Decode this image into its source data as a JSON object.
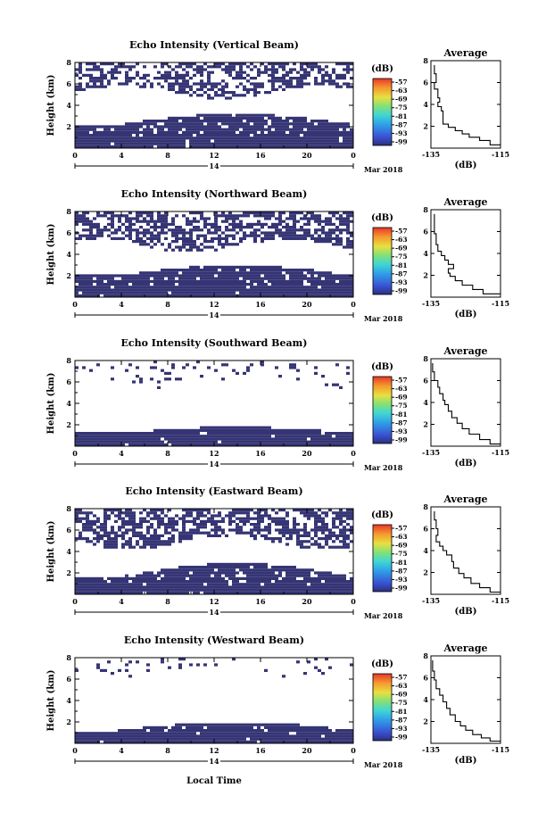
{
  "figure": {
    "xlabel": "Local Time",
    "date_label": "Mar 2018",
    "day_label": "14",
    "colorbar_unit": "(dB)",
    "average_title": "Average",
    "average_xlabel": "(dB)"
  },
  "chart_data": [
    {
      "type": "heatmap",
      "title": "Echo Intensity (Vertical Beam)",
      "ylabel": "Height (km)",
      "xlim": [
        0,
        24
      ],
      "ylim": [
        0,
        8
      ],
      "xticks": [
        "0",
        "4",
        "8",
        "12",
        "16",
        "20",
        "0"
      ],
      "yticks": [
        "2",
        "4",
        "6",
        "8"
      ],
      "colorbar": {
        "ticks": [
          "-57",
          "-63",
          "-69",
          "-75",
          "-81",
          "-87",
          "-93",
          "-99"
        ]
      },
      "upper_base_km": 5.2,
      "lower_top_km": [
        2.2,
        3.2
      ],
      "upper_density": 0.62,
      "lower_density": 0.9,
      "average": {
        "xlim": [
          -135,
          -115
        ],
        "xticks": [
          "-135",
          "-115"
        ],
        "yticks": [
          "2",
          "4",
          "6",
          "8"
        ],
        "x": [
          -134.0,
          -133.5,
          -134.0,
          -133.0,
          -132.5,
          -133.0,
          -132.0,
          -131.5,
          -131.5,
          -130.0,
          -128.0,
          -126.0,
          -124.0,
          -121.0,
          -118.0,
          -115.0
        ],
        "y": [
          7.6,
          6.8,
          6.0,
          5.4,
          4.6,
          4.2,
          3.8,
          3.4,
          2.6,
          2.2,
          1.9,
          1.6,
          1.3,
          1.0,
          0.7,
          0.3
        ]
      }
    },
    {
      "type": "heatmap",
      "title": "Echo Intensity (Northward Beam)",
      "ylabel": "Height (km)",
      "xlim": [
        0,
        24
      ],
      "ylim": [
        0,
        8
      ],
      "xticks": [
        "0",
        "4",
        "8",
        "12",
        "16",
        "20",
        "0"
      ],
      "yticks": [
        "2",
        "4",
        "6",
        "8"
      ],
      "colorbar": {
        "ticks": [
          "-57",
          "-63",
          "-69",
          "-75",
          "-81",
          "-87",
          "-93",
          "-99"
        ]
      },
      "upper_base_km": 4.8,
      "lower_top_km": [
        2.0,
        3.0
      ],
      "upper_density": 0.72,
      "lower_density": 0.92,
      "average": {
        "xlim": [
          -135,
          -115
        ],
        "xticks": [
          "-135",
          "-115"
        ],
        "yticks": [
          "2",
          "4",
          "6",
          "8"
        ],
        "x": [
          -134.0,
          -134.0,
          -133.5,
          -133.0,
          -132.0,
          -131.0,
          -130.0,
          -128.5,
          -130.0,
          -129.5,
          -128.0,
          -126.0,
          -123.0,
          -120.0,
          -115.0
        ],
        "y": [
          7.6,
          6.6,
          5.8,
          4.8,
          4.2,
          3.8,
          3.4,
          3.0,
          2.6,
          2.2,
          1.9,
          1.5,
          1.1,
          0.7,
          0.3
        ]
      }
    },
    {
      "type": "heatmap",
      "title": "Echo Intensity (Southward Beam)",
      "ylabel": "Height (km)",
      "xlim": [
        0,
        24
      ],
      "ylim": [
        0,
        8
      ],
      "xticks": [
        "0",
        "4",
        "8",
        "12",
        "16",
        "20",
        "0"
      ],
      "yticks": [
        "2",
        "4",
        "6",
        "8"
      ],
      "colorbar": {
        "ticks": [
          "-57",
          "-63",
          "-69",
          "-75",
          "-81",
          "-87",
          "-93",
          "-99"
        ]
      },
      "upper_base_km": 6.0,
      "lower_top_km": [
        1.2,
        1.8
      ],
      "upper_density": 0.12,
      "lower_density": 0.95,
      "average": {
        "xlim": [
          -135,
          -115
        ],
        "xticks": [
          "-135",
          "-115"
        ],
        "yticks": [
          "2",
          "4",
          "6",
          "8"
        ],
        "x": [
          -134.5,
          -134.0,
          -133.0,
          -132.5,
          -131.5,
          -131.0,
          -130.0,
          -129.0,
          -127.5,
          -126.0,
          -124.0,
          -121.0,
          -118.0,
          -115.0
        ],
        "y": [
          7.6,
          6.8,
          6.0,
          5.4,
          4.8,
          4.2,
          3.8,
          3.2,
          2.6,
          2.1,
          1.6,
          1.1,
          0.6,
          0.2
        ]
      }
    },
    {
      "type": "heatmap",
      "title": "Echo Intensity (Eastward Beam)",
      "ylabel": "Height (km)",
      "xlim": [
        0,
        24
      ],
      "ylim": [
        0,
        8
      ],
      "xticks": [
        "0",
        "4",
        "8",
        "12",
        "16",
        "20",
        "0"
      ],
      "yticks": [
        "2",
        "4",
        "6",
        "8"
      ],
      "colorbar": {
        "ticks": [
          "-57",
          "-63",
          "-69",
          "-75",
          "-81",
          "-87",
          "-93",
          "-99"
        ]
      },
      "upper_base_km": 4.8,
      "lower_top_km": [
        1.6,
        2.9
      ],
      "upper_density": 0.7,
      "lower_density": 0.9,
      "average": {
        "xlim": [
          -135,
          -115
        ],
        "xticks": [
          "-135",
          "-115"
        ],
        "yticks": [
          "2",
          "4",
          "6",
          "8"
        ],
        "x": [
          -134.0,
          -133.5,
          -133.0,
          -133.5,
          -132.5,
          -131.5,
          -130.5,
          -129.0,
          -128.5,
          -127.0,
          -125.5,
          -123.5,
          -121.0,
          -118.0,
          -115.0
        ],
        "y": [
          7.6,
          6.8,
          6.0,
          5.4,
          4.8,
          4.4,
          4.0,
          3.6,
          3.0,
          2.4,
          1.9,
          1.5,
          1.0,
          0.6,
          0.2
        ]
      }
    },
    {
      "type": "heatmap",
      "title": "Echo Intensity (Westward Beam)",
      "ylabel": "Height (km)",
      "xlim": [
        0,
        24
      ],
      "ylim": [
        0,
        8
      ],
      "xticks": [
        "0",
        "4",
        "8",
        "12",
        "16",
        "20",
        "0"
      ],
      "yticks": [
        "2",
        "4",
        "6",
        "8"
      ],
      "colorbar": {
        "ticks": [
          "-57",
          "-63",
          "-69",
          "-75",
          "-81",
          "-87",
          "-93",
          "-99"
        ]
      },
      "upper_base_km": 6.4,
      "lower_top_km": [
        1.2,
        2.0
      ],
      "upper_density": 0.1,
      "lower_density": 0.93,
      "average": {
        "xlim": [
          -135,
          -115
        ],
        "xticks": [
          "-135",
          "-115"
        ],
        "yticks": [
          "2",
          "4",
          "6",
          "8"
        ],
        "x": [
          -134.5,
          -134.0,
          -133.5,
          -132.5,
          -131.5,
          -130.5,
          -129.5,
          -128.0,
          -126.5,
          -125.0,
          -123.0,
          -120.5,
          -118.0,
          -115.0
        ],
        "y": [
          7.6,
          6.6,
          5.8,
          5.0,
          4.4,
          3.8,
          3.2,
          2.6,
          2.0,
          1.6,
          1.2,
          0.8,
          0.5,
          0.2
        ]
      }
    }
  ]
}
